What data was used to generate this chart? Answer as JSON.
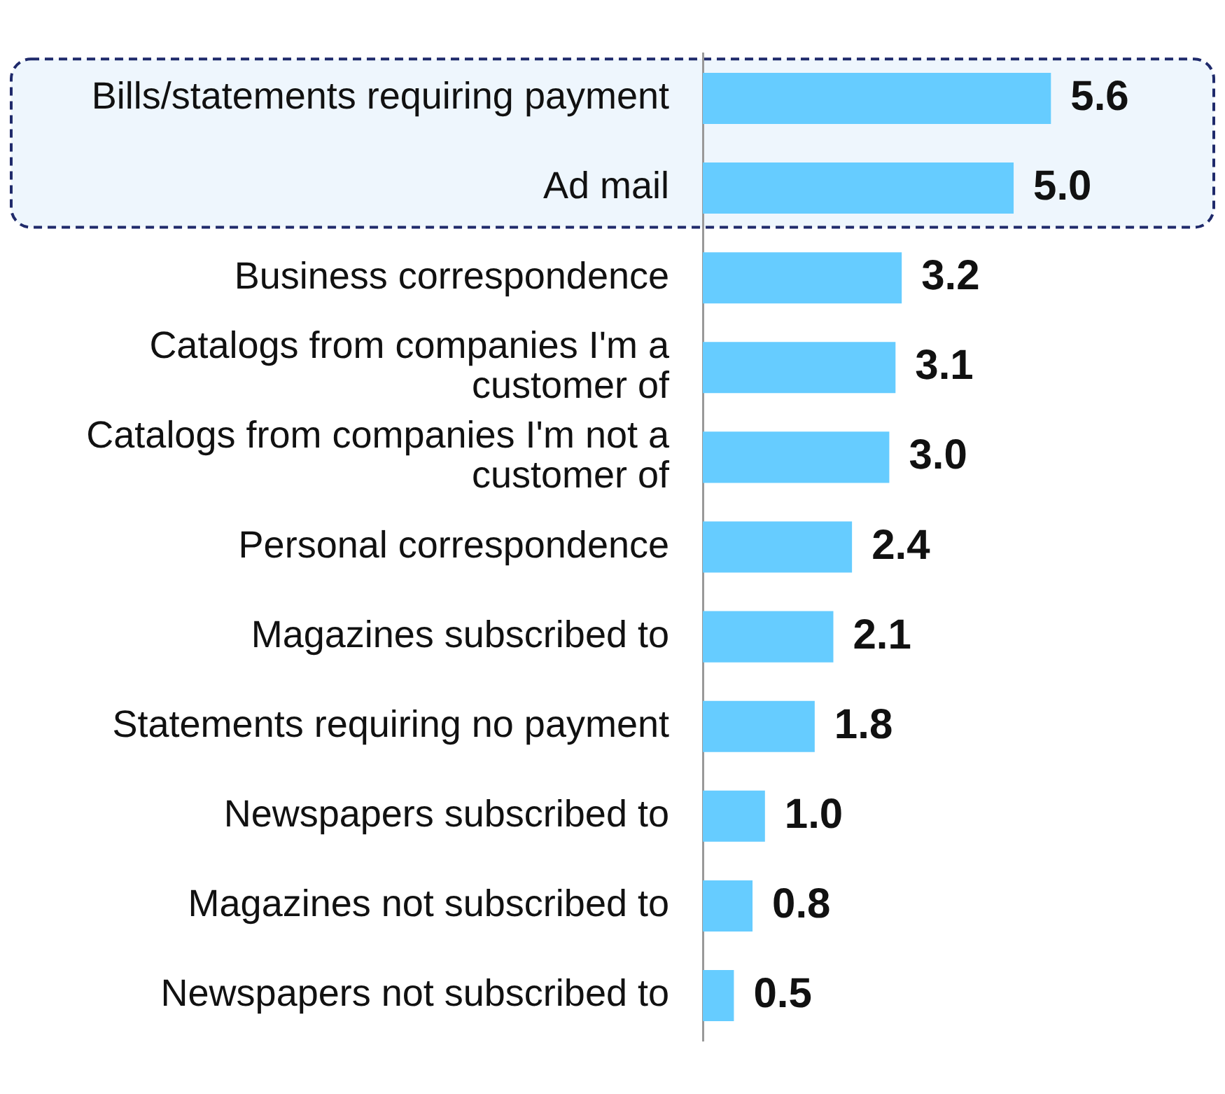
{
  "chart_data": {
    "type": "bar",
    "orientation": "horizontal",
    "categories": [
      "Bills/statements requiring payment",
      "Ad mail",
      "Business correspondence",
      "Catalogs from companies I'm a customer of",
      "Catalogs from companies I'm not a customer of",
      "Personal correspondence",
      "Magazines subscribed to",
      "Statements requiring no payment",
      "Newspapers subscribed to",
      "Magazines not subscribed to",
      "Newspapers not subscribed to"
    ],
    "values": [
      5.6,
      5.0,
      3.2,
      3.1,
      3.0,
      2.4,
      2.1,
      1.8,
      1.0,
      0.8,
      0.5
    ],
    "value_labels": [
      "5.6",
      "5.0",
      "3.2",
      "3.1",
      "3.0",
      "2.4",
      "2.1",
      "1.8",
      "1.0",
      "0.8",
      "0.5"
    ],
    "color": "#66ccff",
    "tick_labels": "y",
    "legend": false,
    "bands": [
      {
        "axis": "y",
        "from": "Bills/statements requiring payment",
        "to": "Ad mail",
        "color": "#eef6fd"
      }
    ],
    "grid": false
  }
}
